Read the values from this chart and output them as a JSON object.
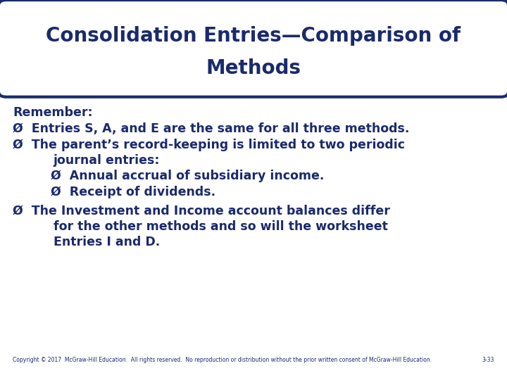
{
  "title_line1": "Consolidation Entries—Comparison of",
  "title_line2": "Methods",
  "bg_color": "#ffffff",
  "title_bg_color": "#ffffff",
  "title_border_color": "#1a2a6c",
  "title_text_color": "#1a2a6c",
  "body_text_color": "#1a2a6c",
  "remember_text": "Remember:",
  "bullet1": "Entries S, A, and E are the same for all three methods.",
  "bullet2_line1": "The parent’s record-keeping is limited to two periodic",
  "bullet2_line2": "journal entries:",
  "sub_bullet1": "Annual accrual of subsidiary income.",
  "sub_bullet2": "Receipt of dividends.",
  "bullet3_line1": "The Investment and Income account balances differ",
  "bullet3_line2": "for the other methods and so will the worksheet",
  "bullet3_line3": "Entries I and D.",
  "copyright": "Copyright © 2017  McGraw-Hill Education.  All rights reserved.  No reproduction or distribution without the prior written consent of McGraw-Hill Education.",
  "page_num": "3-33",
  "title_fontsize": 20,
  "body_fontsize": 12.5,
  "remember_fontsize": 12.5,
  "copyright_fontsize": 5.5
}
